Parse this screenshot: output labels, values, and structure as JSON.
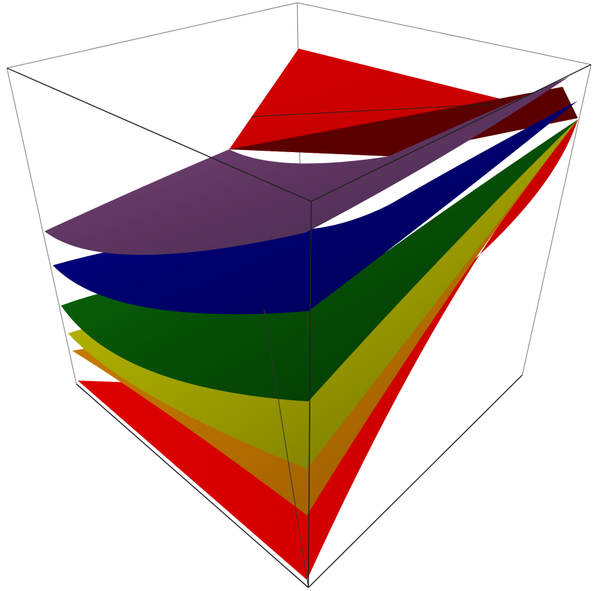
{
  "chart_data": {
    "type": "surface3d",
    "title": "",
    "box": "bounding-box",
    "axes_labels": "none",
    "series": [
      {
        "name": "",
        "color": "#cc0000",
        "values": [
          [
            0.0,
            0.6
          ],
          [
            0.22,
            1.0
          ]
        ]
      },
      {
        "name": "",
        "color": "#cc7a00",
        "values": [
          [
            0.05,
            0.45
          ],
          [
            0.44,
            1.0
          ]
        ]
      },
      {
        "name": "",
        "color": "#b5b500",
        "values": [
          [
            0.1,
            0.4
          ],
          [
            0.5,
            1.0
          ]
        ]
      },
      {
        "name": "",
        "color": "#0a5c0a",
        "values": [
          [
            0.25,
            0.45
          ],
          [
            0.62,
            1.0
          ]
        ]
      },
      {
        "name": "",
        "color": "#000099",
        "values": [
          [
            0.45,
            0.55
          ],
          [
            0.74,
            1.0
          ]
        ]
      },
      {
        "name": "",
        "color": "#7a3f7a",
        "values": [
          [
            0.58,
            0.65
          ],
          [
            0.82,
            1.0
          ]
        ]
      },
      {
        "name": "",
        "color": "#cc0000",
        "values": [
          [
            1.0,
            1.0
          ],
          [
            1.0,
            1.0
          ]
        ]
      }
    ]
  }
}
